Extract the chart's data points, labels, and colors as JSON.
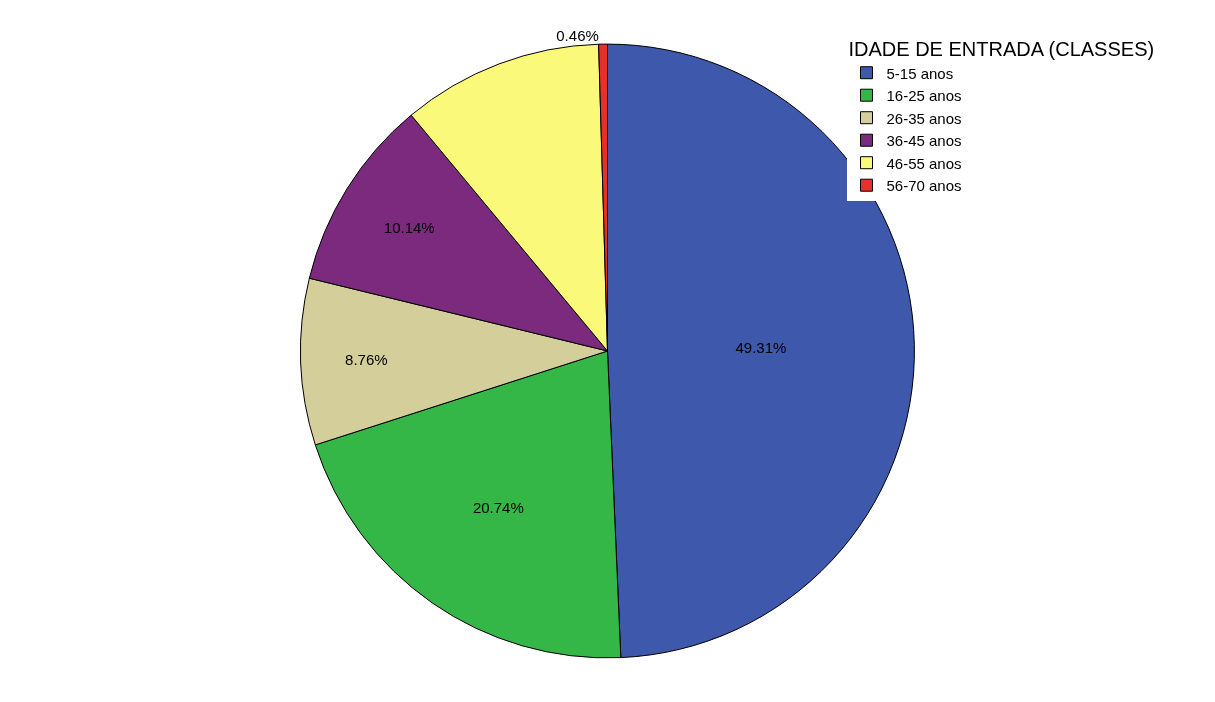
{
  "chart_data": {
    "type": "pie",
    "legend_title": "IDADE DE ENTRADA (CLASSES)",
    "legend": "top right",
    "categories": [
      "5-15 anos",
      "16-25 anos",
      "26-35 anos",
      "36-45 anos",
      "46-55 anos",
      "56-70 anos"
    ],
    "values": [
      49.31,
      20.74,
      8.76,
      10.14,
      10.59,
      0.46
    ],
    "value_labels": [
      "49.31%",
      "20.74%",
      "8.76%",
      "10.14%",
      null,
      "0.46%"
    ],
    "colors": [
      "#3e58ac",
      "#35b748",
      "#d4cf9a",
      "#7c2a7e",
      "#fbf97a",
      "#e8302a"
    ]
  }
}
